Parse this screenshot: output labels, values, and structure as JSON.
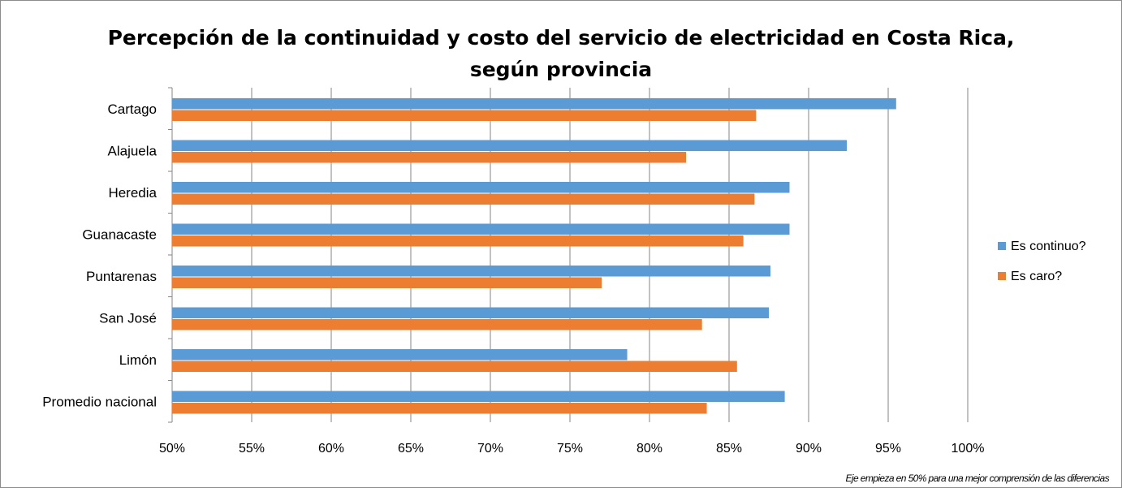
{
  "chart_data": {
    "type": "bar",
    "orientation": "horizontal",
    "title_lines": [
      "Percepción de la continuidad y costo del servicio de electricidad en Costa Rica,",
      "según provincia"
    ],
    "categories": [
      "Cartago",
      "Alajuela",
      "Heredia",
      "Guanacaste",
      "Puntarenas",
      "San José",
      "Limón",
      "Promedio nacional"
    ],
    "series": [
      {
        "name": "Es continuo?",
        "color": "#5b9bd5",
        "values": [
          95.5,
          92.4,
          88.8,
          88.8,
          87.6,
          87.5,
          78.6,
          88.5
        ]
      },
      {
        "name": "Es caro?",
        "color": "#ed7d31",
        "values": [
          86.7,
          82.3,
          86.6,
          85.9,
          77.0,
          83.3,
          85.5,
          83.6
        ]
      }
    ],
    "xlim": [
      50,
      100
    ],
    "xticks": [
      50,
      55,
      60,
      65,
      70,
      75,
      80,
      85,
      90,
      95,
      100
    ],
    "tick_suffix": "%",
    "grid": "vertical",
    "legend_position": "right",
    "note": "Eje empieza en 50% para una mejor comprensión de las diferencias"
  }
}
